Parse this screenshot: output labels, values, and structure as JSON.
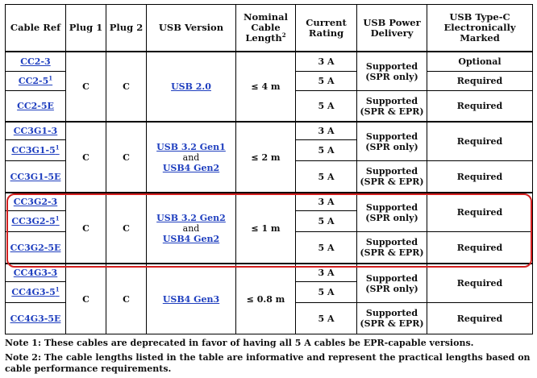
{
  "table": {
    "headers": {
      "cable_ref": "Cable Ref",
      "plug1": "Plug 1",
      "plug2": "Plug 2",
      "usb_version": "USB Version",
      "length_l1": "Nominal",
      "length_l2": "Cable",
      "length_l3": "Length",
      "length_sup": "2",
      "current_l1": "Current",
      "current_l2": "Rating",
      "pd_l1": "USB Power",
      "pd_l2": "Delivery",
      "marked_l1": "USB Type-C",
      "marked_l2": "Electronically",
      "marked_l3": "Marked"
    },
    "groups": [
      {
        "plug1": "C",
        "plug2": "C",
        "usb_version_1": "USB 2.0",
        "usb_version_and": "",
        "usb_version_2": "",
        "length": "≤ 4 m",
        "rows": [
          {
            "ref": "CC2-3",
            "sup": "",
            "current": "3 A"
          },
          {
            "ref": "CC2-5",
            "sup": "1",
            "current": "5 A"
          },
          {
            "ref": "CC2-5E",
            "sup": "",
            "current": "5 A"
          }
        ],
        "pd_a_l1": "Supported",
        "pd_a_l2": "(SPR only)",
        "pd_b_l1": "Supported",
        "pd_b_l2": "(SPR & EPR)",
        "marked_a": "Optional",
        "marked_b": "Required",
        "marked_c": "Required"
      },
      {
        "plug1": "C",
        "plug2": "C",
        "usb_version_1": "USB 3.2 Gen1",
        "usb_version_and": "and",
        "usb_version_2": "USB4 Gen2",
        "length": "≤ 2 m",
        "rows": [
          {
            "ref": "CC3G1-3",
            "sup": "",
            "current": "3 A"
          },
          {
            "ref": "CC3G1-5",
            "sup": "1",
            "current": "5 A"
          },
          {
            "ref": "CC3G1-5E",
            "sup": "",
            "current": "5 A"
          }
        ],
        "pd_a_l1": "Supported",
        "pd_a_l2": "(SPR only)",
        "pd_b_l1": "Supported",
        "pd_b_l2": "(SPR & EPR)",
        "marked_ab": "Required",
        "marked_c": "Required"
      },
      {
        "plug1": "C",
        "plug2": "C",
        "usb_version_1": "USB 3.2 Gen2",
        "usb_version_and": "and",
        "usb_version_2": "USB4 Gen2",
        "length": "≤ 1 m",
        "rows": [
          {
            "ref": "CC3G2-3",
            "sup": "",
            "current": "3 A"
          },
          {
            "ref": "CC3G2-5",
            "sup": "1",
            "current": "5 A"
          },
          {
            "ref": "CC3G2-5E",
            "sup": "",
            "current": "5 A"
          }
        ],
        "pd_a_l1": "Supported",
        "pd_a_l2": "(SPR only)",
        "pd_b_l1": "Supported",
        "pd_b_l2": "(SPR & EPR)",
        "marked_ab": "Required",
        "marked_c": "Required"
      },
      {
        "plug1": "C",
        "plug2": "C",
        "usb_version_1": "USB4 Gen3",
        "usb_version_and": "",
        "usb_version_2": "",
        "length": "≤ 0.8 m",
        "rows": [
          {
            "ref": "CC4G3-3",
            "sup": "",
            "current": "3 A"
          },
          {
            "ref": "CC4G3-5",
            "sup": "1",
            "current": "5 A"
          },
          {
            "ref": "CC4G3-5E",
            "sup": "",
            "current": "5 A"
          }
        ],
        "pd_a_l1": "Supported",
        "pd_a_l2": "(SPR only)",
        "pd_b_l1": "Supported",
        "pd_b_l2": "(SPR & EPR)",
        "marked_ab": "Required",
        "marked_c": "Required"
      }
    ]
  },
  "notes": {
    "note1": "Note 1: These cables are deprecated in favor of having all 5 A cables be EPR-capable versions.",
    "note2": "Note 2: The cable lengths listed in the table are informative and represent the practical lengths based on cable performance requirements."
  },
  "colors": {
    "link": "#1f3fbf",
    "highlight": "#d31f1f"
  }
}
